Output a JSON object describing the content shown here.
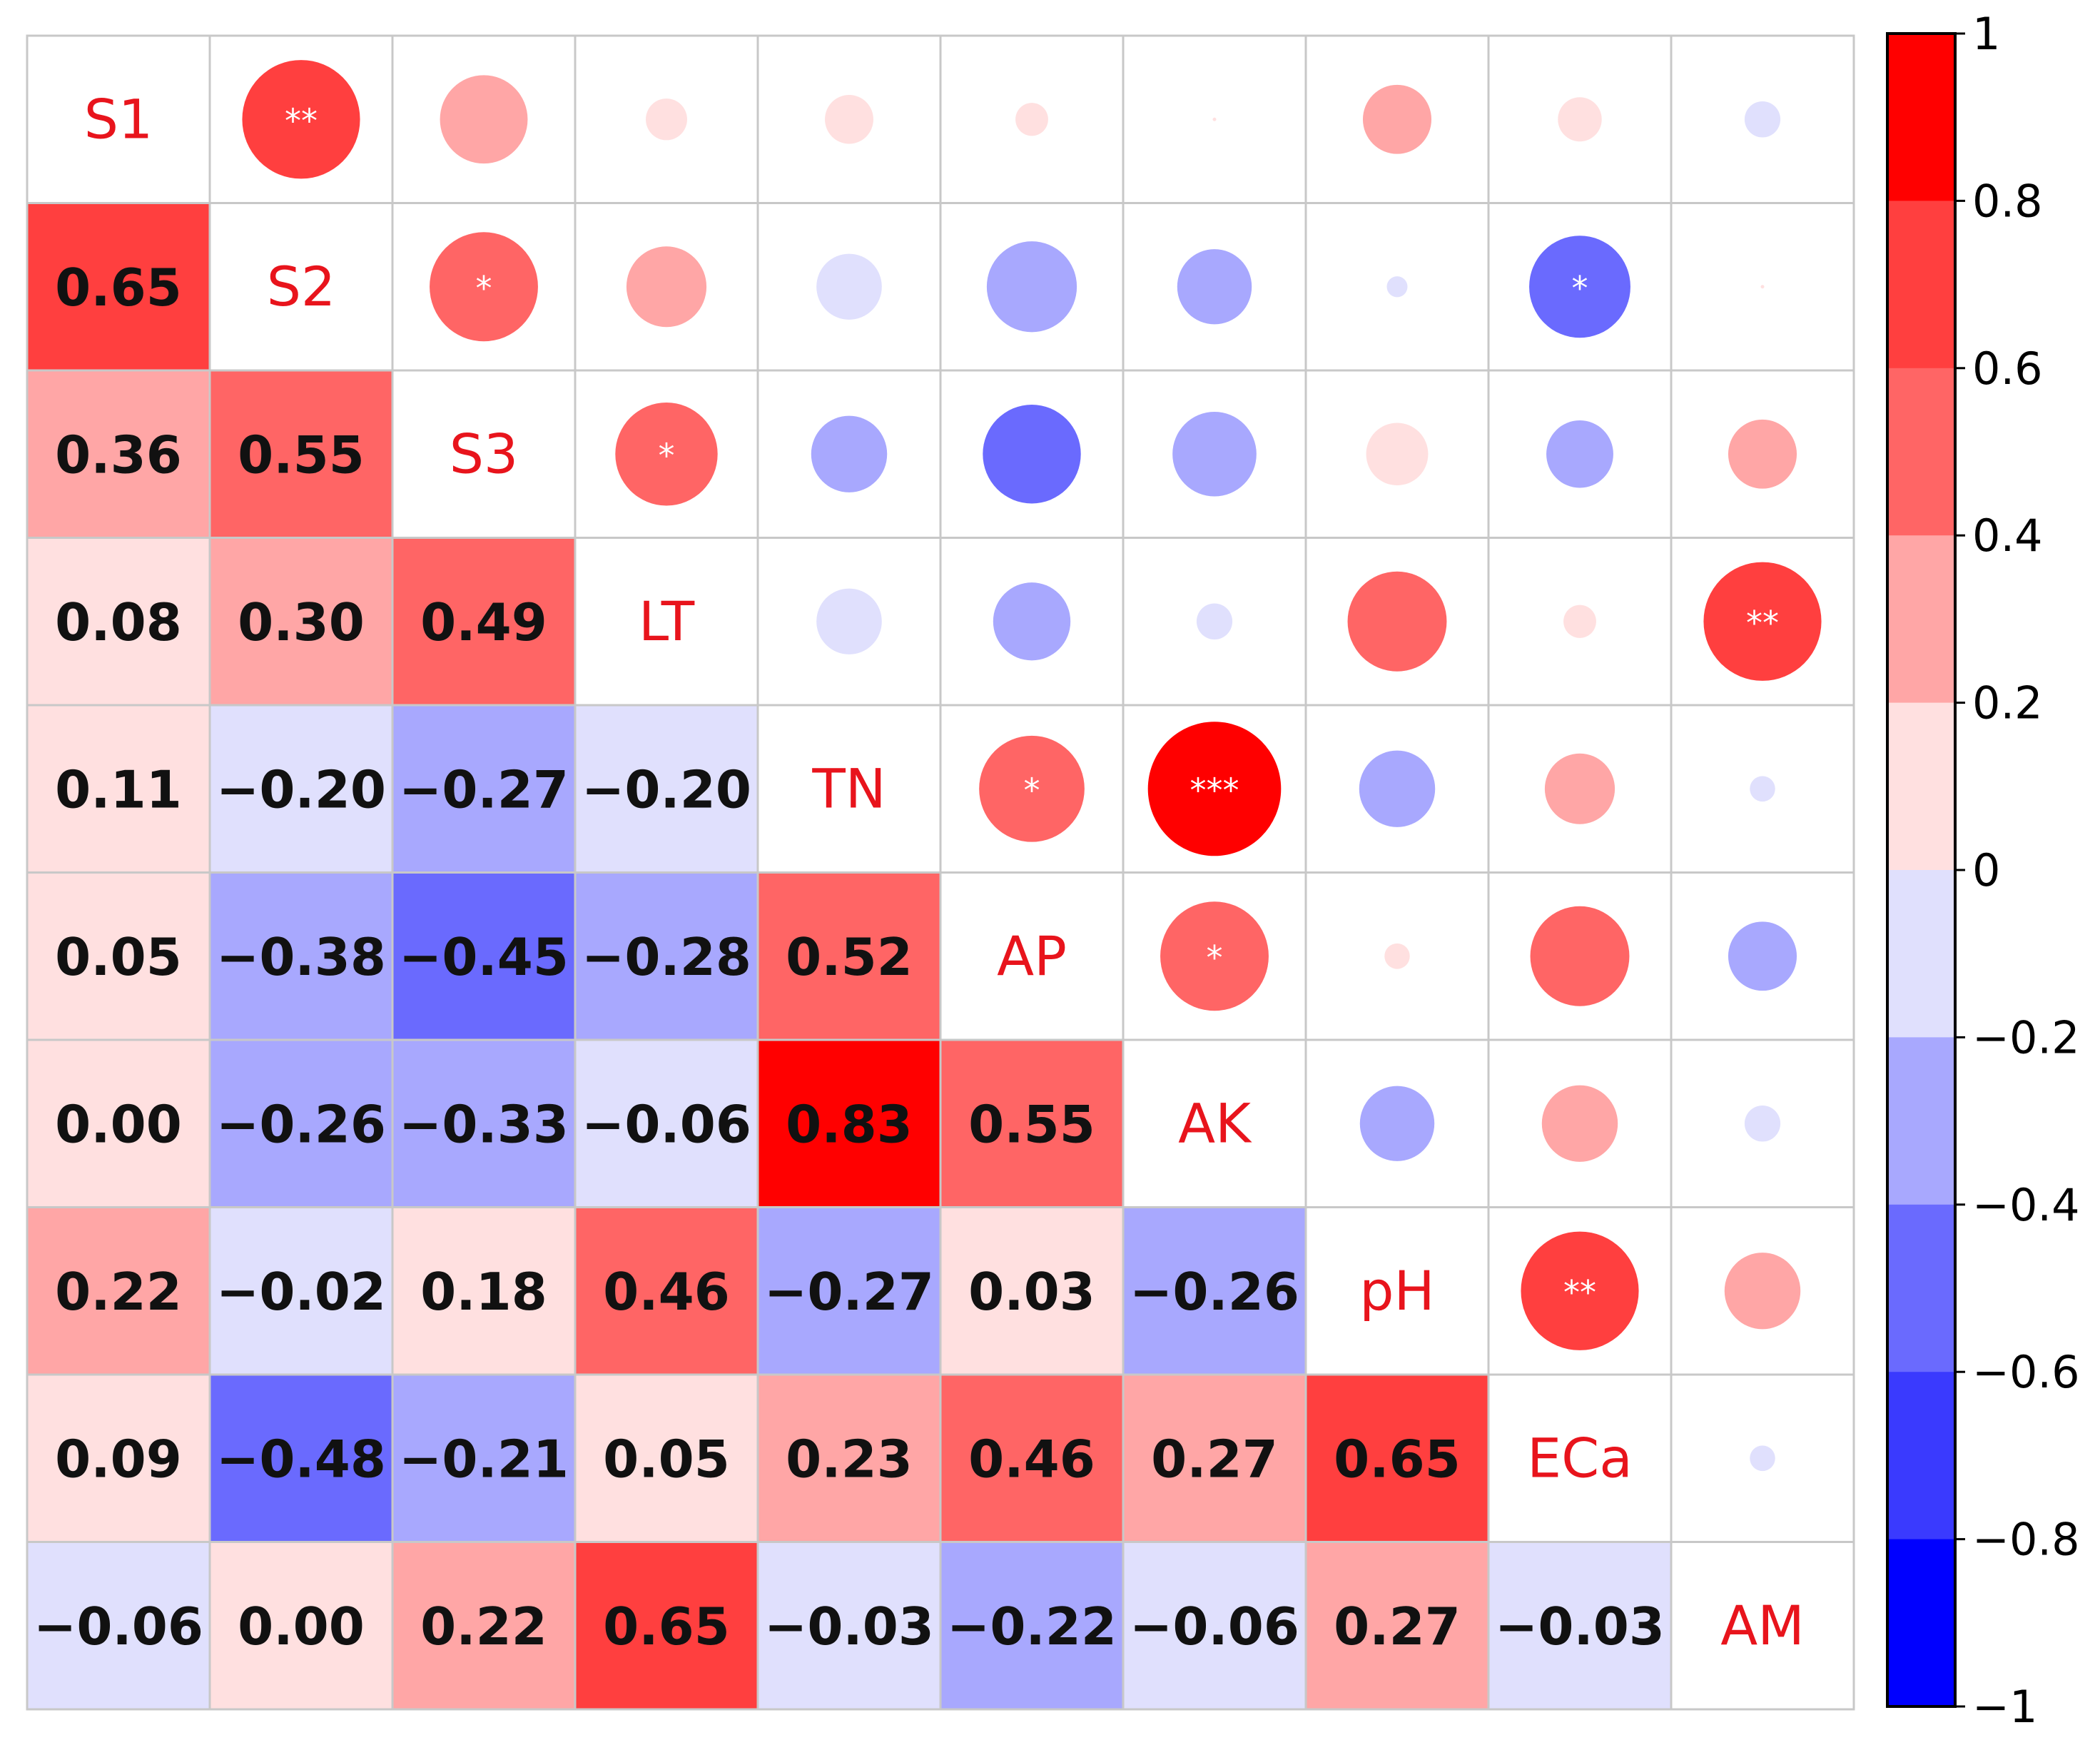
{
  "chart_data": {
    "type": "heatmap",
    "subtype": "correlation-matrix",
    "variables": [
      "S1",
      "S2",
      "S3",
      "LT",
      "TN",
      "AP",
      "AK",
      "pH",
      "ECa",
      "AM"
    ],
    "matrix": [
      [
        1.0,
        0.65,
        0.36,
        0.08,
        0.11,
        0.05,
        0.0,
        0.22,
        0.09,
        -0.06
      ],
      [
        0.65,
        1.0,
        0.55,
        0.3,
        -0.2,
        -0.38,
        -0.26,
        -0.02,
        -0.48,
        0.0
      ],
      [
        0.36,
        0.55,
        1.0,
        0.49,
        -0.27,
        -0.45,
        -0.33,
        0.18,
        -0.21,
        0.22
      ],
      [
        0.08,
        0.3,
        0.49,
        1.0,
        -0.2,
        -0.28,
        -0.06,
        0.46,
        0.05,
        0.65
      ],
      [
        0.11,
        -0.2,
        -0.27,
        -0.2,
        1.0,
        0.52,
        0.83,
        -0.27,
        0.23,
        -0.03
      ],
      [
        0.05,
        -0.38,
        -0.45,
        -0.28,
        0.52,
        1.0,
        0.55,
        0.03,
        0.46,
        -0.22
      ],
      [
        0.0,
        -0.26,
        -0.33,
        -0.06,
        0.83,
        0.55,
        1.0,
        -0.26,
        0.27,
        -0.06
      ],
      [
        0.22,
        -0.02,
        0.18,
        0.46,
        -0.27,
        0.03,
        -0.26,
        1.0,
        0.65,
        0.27
      ],
      [
        0.09,
        -0.48,
        -0.21,
        0.05,
        0.23,
        0.46,
        0.27,
        0.65,
        1.0,
        -0.03
      ],
      [
        -0.06,
        0.0,
        0.22,
        0.65,
        -0.03,
        -0.22,
        -0.06,
        0.27,
        -0.03,
        1.0
      ]
    ],
    "lower_labels": [
      [
        "",
        "",
        "",
        "",
        "",
        "",
        "",
        "",
        "",
        ""
      ],
      [
        "0.65",
        "",
        "",
        "",
        "",
        "",
        "",
        "",
        "",
        ""
      ],
      [
        "0.36",
        "0.55",
        "",
        "",
        "",
        "",
        "",
        "",
        "",
        ""
      ],
      [
        "0.08",
        "0.30",
        "0.49",
        "",
        "",
        "",
        "",
        "",
        "",
        ""
      ],
      [
        "0.11",
        "−0.20",
        "−0.27",
        "−0.20",
        "",
        "",
        "",
        "",
        "",
        ""
      ],
      [
        "0.05",
        "−0.38",
        "−0.45",
        "−0.28",
        "0.52",
        "",
        "",
        "",
        "",
        ""
      ],
      [
        "0.00",
        "−0.26",
        "−0.33",
        "−0.06",
        "0.83",
        "0.55",
        "",
        "",
        "",
        ""
      ],
      [
        "0.22",
        "−0.02",
        "0.18",
        "0.46",
        "−0.27",
        "0.03",
        "−0.26",
        "",
        "",
        ""
      ],
      [
        "0.09",
        "−0.48",
        "−0.21",
        "0.05",
        "0.23",
        "0.46",
        "0.27",
        "0.65",
        "",
        ""
      ],
      [
        "−0.06",
        "0.00",
        "0.22",
        "0.65",
        "−0.03",
        "−0.22",
        "−0.06",
        "0.27",
        "−0.03",
        ""
      ]
    ],
    "significance": [
      {
        "row": 0,
        "col": 1,
        "stars": "**"
      },
      {
        "row": 1,
        "col": 2,
        "stars": "*"
      },
      {
        "row": 1,
        "col": 8,
        "stars": "*"
      },
      {
        "row": 2,
        "col": 3,
        "stars": "*"
      },
      {
        "row": 3,
        "col": 9,
        "stars": "**"
      },
      {
        "row": 4,
        "col": 5,
        "stars": "*"
      },
      {
        "row": 4,
        "col": 6,
        "stars": "***"
      },
      {
        "row": 5,
        "col": 6,
        "stars": "*"
      },
      {
        "row": 7,
        "col": 8,
        "stars": "**"
      }
    ],
    "colorbar": {
      "range": [
        -1,
        1
      ],
      "tick_values": [
        1,
        0.8,
        0.6,
        0.4,
        0.2,
        0,
        -0.2,
        -0.4,
        -0.6,
        -0.8,
        -1
      ],
      "tick_labels": [
        "1",
        "0.8",
        "0.6",
        "0.4",
        "0.2",
        "0",
        "−0.2",
        "−0.4",
        "−0.6",
        "−0.8",
        "−1"
      ],
      "bins": [
        {
          "from": 0.8,
          "to": 1.0,
          "color": "#ff0000"
        },
        {
          "from": 0.6,
          "to": 0.8,
          "color": "#ff3f3f"
        },
        {
          "from": 0.4,
          "to": 0.6,
          "color": "#ff6565"
        },
        {
          "from": 0.2,
          "to": 0.4,
          "color": "#ffa6a6"
        },
        {
          "from": 0.0,
          "to": 0.2,
          "color": "#ffe0e0"
        },
        {
          "from": -0.2,
          "to": 0.0,
          "color": "#e0e0fd"
        },
        {
          "from": -0.4,
          "to": -0.2,
          "color": "#a8a8fe"
        },
        {
          "from": -0.6,
          "to": -0.4,
          "color": "#6a6afe"
        },
        {
          "from": -0.8,
          "to": -0.6,
          "color": "#3a3afe"
        },
        {
          "from": -1.0,
          "to": -0.8,
          "color": "#0000ff"
        }
      ]
    },
    "upper_glyph": "ellipse",
    "lower_glyph": "square-with-value",
    "diagonal": "variable-name",
    "colors": {
      "diagonal_label": "#e8141c",
      "value_text": "#111111",
      "star_text": "#ffffff",
      "grid": "#c8c8c8",
      "frame": "#000000"
    }
  }
}
